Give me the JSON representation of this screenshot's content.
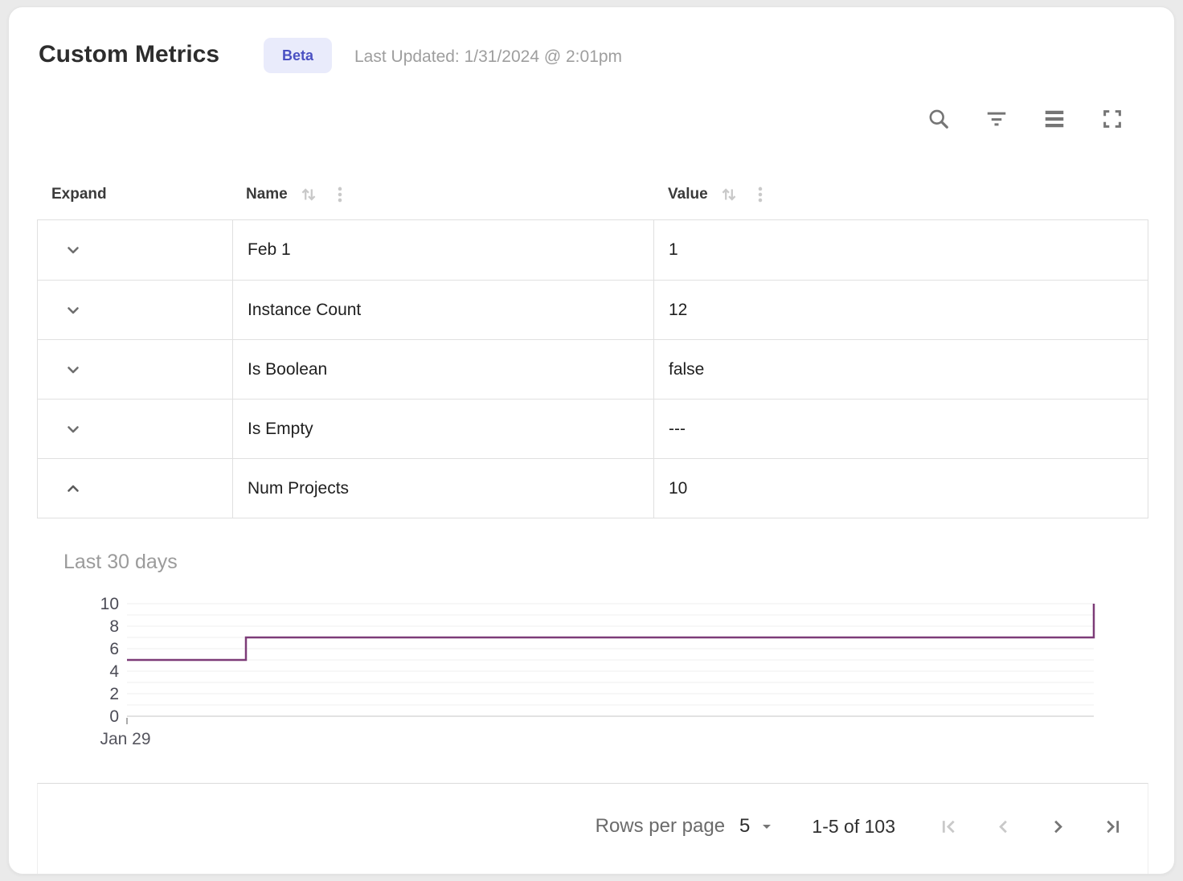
{
  "header": {
    "title": "Custom Metrics",
    "badge": "Beta",
    "last_updated": "Last Updated: 1/31/2024 @ 2:01pm"
  },
  "toolbar": {
    "icons": [
      "search",
      "filter",
      "density",
      "fullscreen"
    ]
  },
  "table": {
    "columns": [
      {
        "label": "Expand",
        "sortable": false
      },
      {
        "label": "Name",
        "sortable": true
      },
      {
        "label": "Value",
        "sortable": true
      }
    ],
    "rows": [
      {
        "name": "Feb 1",
        "value": "1",
        "expanded": false
      },
      {
        "name": "Instance Count",
        "value": "12",
        "expanded": false
      },
      {
        "name": "Is Boolean",
        "value": "false",
        "expanded": false
      },
      {
        "name": "Is Empty",
        "value": "---",
        "expanded": false
      },
      {
        "name": "Num Projects",
        "value": "10",
        "expanded": true
      }
    ]
  },
  "chart_data": {
    "type": "line",
    "subtype": "step",
    "title": "Last 30 days",
    "x_axis": {
      "tick_labels": [
        "Jan 29"
      ],
      "range_days": 30
    },
    "y_axis": {
      "ticks": [
        0,
        2,
        4,
        6,
        8,
        10
      ],
      "ylim": [
        0,
        10
      ]
    },
    "grid": true,
    "legend": false,
    "line_color": "#7d3c78",
    "series": [
      {
        "name": "Num Projects",
        "points": [
          {
            "x_frac": 0,
            "y": 5
          },
          {
            "x_frac": 0.123,
            "y": 5
          },
          {
            "x_frac": 0.123,
            "y": 7
          },
          {
            "x_frac": 1,
            "y": 7
          },
          {
            "x_frac": 1,
            "y": 10
          }
        ]
      }
    ]
  },
  "footer": {
    "rows_per_page_label": "Rows per page",
    "rows_per_page_value": "5",
    "range_label": "1-5 of 103",
    "pagination": {
      "first_enabled": false,
      "prev_enabled": false,
      "next_enabled": true,
      "last_enabled": true
    }
  },
  "colors": {
    "badge_bg": "#e9ebfb",
    "badge_text": "#4a50c2",
    "chart_line": "#7d3c78",
    "border": "#e0e0e0",
    "icon": "#757575",
    "icon_disabled": "#c9c9c9",
    "muted_text": "#9e9e9e"
  }
}
